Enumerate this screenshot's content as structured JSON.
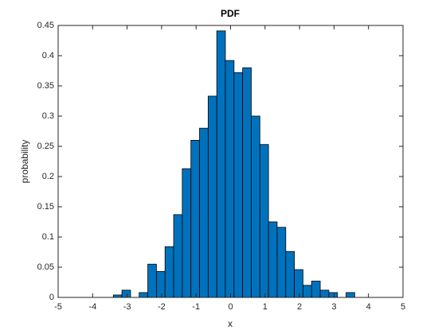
{
  "chart_data": {
    "type": "histogram",
    "title": "PDF",
    "x_label": "x",
    "y_label": "probability",
    "bins": [
      -3.4,
      -3.15,
      -2.9,
      -2.65,
      -2.4,
      -2.15,
      -1.9,
      -1.65,
      -1.4,
      -1.15,
      -0.9,
      -0.65,
      -0.4,
      -0.15,
      0.1,
      0.35,
      0.6,
      0.85,
      1.1,
      1.35,
      1.6,
      1.85,
      2.1,
      2.35,
      2.6,
      2.85,
      3.1,
      3.35,
      3.6
    ],
    "values": [
      0.004,
      0.012,
      0,
      0.008,
      0.055,
      0.043,
      0.084,
      0.137,
      0.213,
      0.26,
      0.28,
      0.333,
      0.441,
      0.392,
      0.372,
      0.38,
      0.3,
      0.253,
      0.125,
      0.116,
      0.076,
      0.046,
      0.02,
      0.027,
      0.012,
      0.008,
      0,
      0.008
    ],
    "color": "#0072bd",
    "xlim": [
      -5,
      5
    ],
    "xticks": [
      -5,
      -4,
      -3,
      -2,
      -1,
      0,
      1,
      2,
      3,
      4,
      5
    ],
    "ylim": [
      0,
      0.45
    ],
    "yticks": [
      0,
      0.05,
      0.1,
      0.15,
      0.2,
      0.25,
      0.3,
      0.35,
      0.4,
      0.45
    ],
    "grid": false
  }
}
